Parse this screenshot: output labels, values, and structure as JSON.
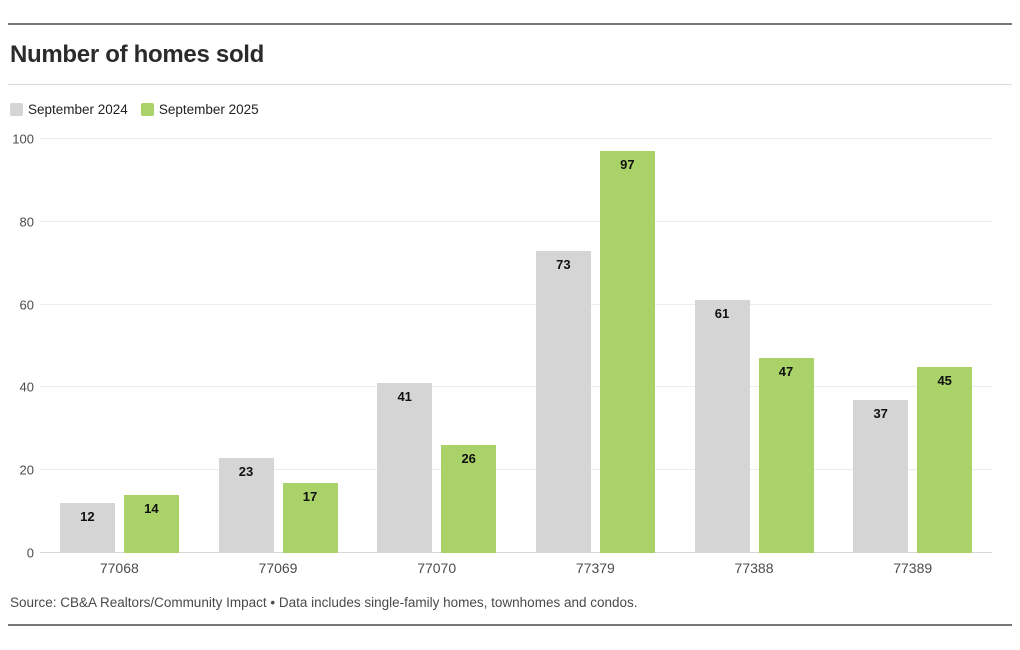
{
  "page": {
    "source": "Source: CB&A Realtors/Community Impact • Data includes single-family homes, townhomes and condos."
  },
  "chart_data": {
    "type": "bar",
    "title": "Number of homes sold",
    "categories": [
      "77068",
      "77069",
      "77070",
      "77379",
      "77388",
      "77389"
    ],
    "series": [
      {
        "name": "September 2024",
        "color": "#d5d5d5",
        "values": [
          12,
          23,
          41,
          73,
          61,
          37
        ]
      },
      {
        "name": "September 2025",
        "color": "#a9d268",
        "values": [
          14,
          17,
          26,
          97,
          47,
          45
        ]
      }
    ],
    "xlabel": "",
    "ylabel": "",
    "ylim": [
      0,
      100
    ],
    "yticks": [
      0,
      20,
      40,
      60,
      80,
      100
    ],
    "grid": true,
    "gridline_color": "#ececec",
    "baseline_color": "#d8d8d8",
    "tick_label_color": "#4c4c4c",
    "value_label_color": "#111111",
    "value_labels": "inside-top",
    "legend_position": "top-left"
  }
}
